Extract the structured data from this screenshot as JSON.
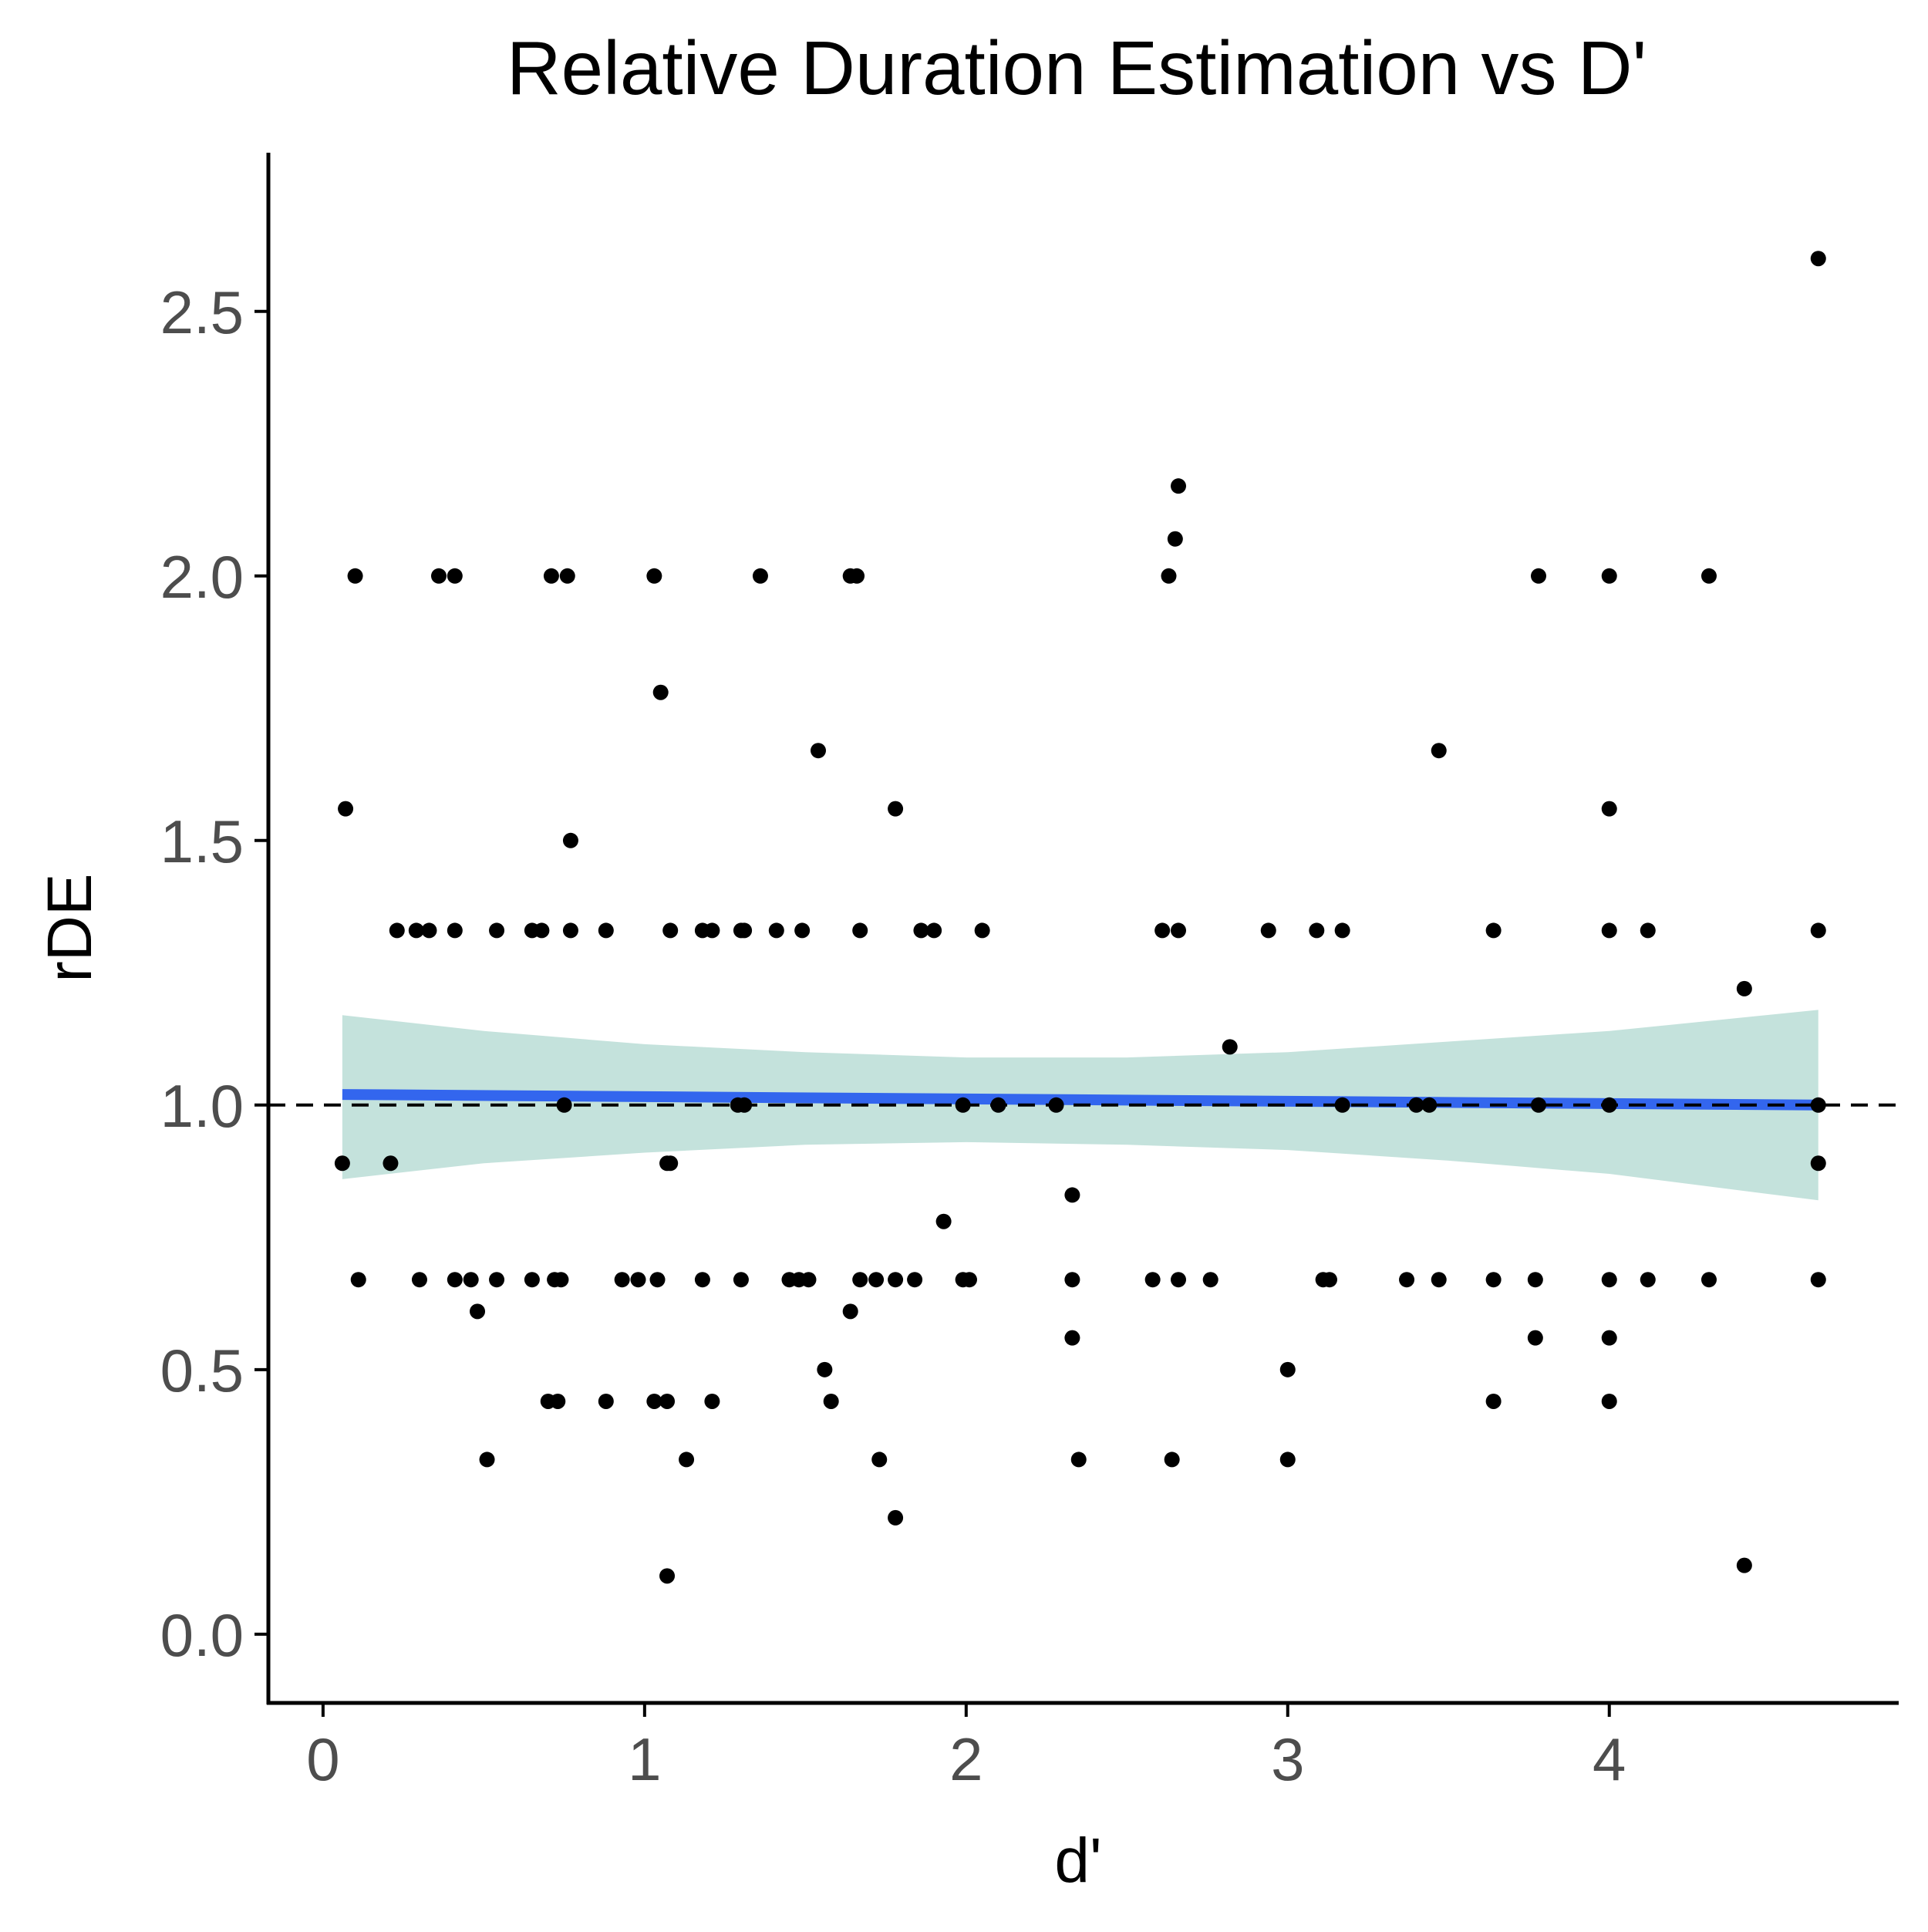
{
  "chart_data": {
    "type": "scatter",
    "title": "Relative Duration Estimation vs D'",
    "xlabel": "d'",
    "ylabel": "rDE",
    "xlim": [
      -0.17,
      4.9
    ],
    "ylim": [
      -0.13,
      2.8
    ],
    "xticks": [
      0,
      1,
      2,
      3,
      4
    ],
    "xtick_labels": [
      "0",
      "1",
      "2",
      "3",
      "4"
    ],
    "yticks": [
      0,
      0.5,
      1,
      1.5,
      2,
      2.5
    ],
    "ytick_labels": [
      "0.0",
      "0.5",
      "1.0",
      "1.5",
      "2.0",
      "2.5"
    ],
    "grid": false,
    "reference_line": {
      "y": 1.0,
      "style": "dashed",
      "color": "#000000"
    },
    "trend": {
      "method": "linear",
      "x": [
        0.06,
        4.65
      ],
      "y": [
        1.02,
        1.0
      ],
      "color": "#3366ee",
      "ci_color": "#b0d8d0",
      "ci_x": [
        0.06,
        0.5,
        1.0,
        1.5,
        2.0,
        2.5,
        3.0,
        3.5,
        4.0,
        4.65
      ],
      "ci_lower": [
        0.86,
        0.89,
        0.91,
        0.925,
        0.93,
        0.925,
        0.915,
        0.895,
        0.87,
        0.82
      ],
      "ci_upper": [
        1.17,
        1.14,
        1.115,
        1.1,
        1.09,
        1.09,
        1.1,
        1.12,
        1.14,
        1.18
      ]
    },
    "point_color": "#000000",
    "points": [
      {
        "x": 0.06,
        "y": 0.89
      },
      {
        "x": 0.07,
        "y": 1.56
      },
      {
        "x": 0.1,
        "y": 2.0
      },
      {
        "x": 0.11,
        "y": 0.67
      },
      {
        "x": 0.21,
        "y": 0.89
      },
      {
        "x": 0.23,
        "y": 1.33
      },
      {
        "x": 0.29,
        "y": 1.33
      },
      {
        "x": 0.3,
        "y": 0.67
      },
      {
        "x": 0.33,
        "y": 1.33
      },
      {
        "x": 0.36,
        "y": 2.0
      },
      {
        "x": 0.41,
        "y": 2.0
      },
      {
        "x": 0.41,
        "y": 1.33
      },
      {
        "x": 0.41,
        "y": 0.67
      },
      {
        "x": 0.46,
        "y": 0.67
      },
      {
        "x": 0.48,
        "y": 0.61
      },
      {
        "x": 0.51,
        "y": 0.33
      },
      {
        "x": 0.54,
        "y": 1.33
      },
      {
        "x": 0.54,
        "y": 0.67
      },
      {
        "x": 0.65,
        "y": 1.33
      },
      {
        "x": 0.65,
        "y": 0.67
      },
      {
        "x": 0.68,
        "y": 1.33
      },
      {
        "x": 0.7,
        "y": 0.44
      },
      {
        "x": 0.71,
        "y": 2.0
      },
      {
        "x": 0.72,
        "y": 0.67
      },
      {
        "x": 0.73,
        "y": 0.44
      },
      {
        "x": 0.74,
        "y": 0.67
      },
      {
        "x": 0.75,
        "y": 1.0
      },
      {
        "x": 0.76,
        "y": 2.0
      },
      {
        "x": 0.77,
        "y": 1.5
      },
      {
        "x": 0.77,
        "y": 1.33
      },
      {
        "x": 0.88,
        "y": 1.33
      },
      {
        "x": 0.88,
        "y": 0.44
      },
      {
        "x": 0.93,
        "y": 0.67
      },
      {
        "x": 0.98,
        "y": 0.67
      },
      {
        "x": 1.03,
        "y": 2.0
      },
      {
        "x": 1.03,
        "y": 0.44
      },
      {
        "x": 1.04,
        "y": 0.67
      },
      {
        "x": 1.05,
        "y": 1.78
      },
      {
        "x": 1.07,
        "y": 0.89
      },
      {
        "x": 1.07,
        "y": 0.44
      },
      {
        "x": 1.07,
        "y": 0.11
      },
      {
        "x": 1.08,
        "y": 1.33
      },
      {
        "x": 1.08,
        "y": 0.89
      },
      {
        "x": 1.13,
        "y": 0.33
      },
      {
        "x": 1.18,
        "y": 1.33
      },
      {
        "x": 1.18,
        "y": 0.67
      },
      {
        "x": 1.21,
        "y": 1.33
      },
      {
        "x": 1.21,
        "y": 0.44
      },
      {
        "x": 1.29,
        "y": 1.0
      },
      {
        "x": 1.3,
        "y": 1.33
      },
      {
        "x": 1.3,
        "y": 0.67
      },
      {
        "x": 1.31,
        "y": 1.0
      },
      {
        "x": 1.31,
        "y": 1.33
      },
      {
        "x": 1.36,
        "y": 2.0
      },
      {
        "x": 1.41,
        "y": 1.33
      },
      {
        "x": 1.45,
        "y": 0.67
      },
      {
        "x": 1.48,
        "y": 0.67
      },
      {
        "x": 1.49,
        "y": 1.33
      },
      {
        "x": 1.51,
        "y": 0.67
      },
      {
        "x": 1.54,
        "y": 1.67
      },
      {
        "x": 1.56,
        "y": 0.5
      },
      {
        "x": 1.58,
        "y": 0.44
      },
      {
        "x": 1.64,
        "y": 2.0
      },
      {
        "x": 1.64,
        "y": 0.61
      },
      {
        "x": 1.66,
        "y": 2.0
      },
      {
        "x": 1.67,
        "y": 1.33
      },
      {
        "x": 1.67,
        "y": 0.67
      },
      {
        "x": 1.72,
        "y": 0.67
      },
      {
        "x": 1.73,
        "y": 0.33
      },
      {
        "x": 1.78,
        "y": 1.56
      },
      {
        "x": 1.78,
        "y": 0.67
      },
      {
        "x": 1.78,
        "y": 0.22
      },
      {
        "x": 1.84,
        "y": 0.67
      },
      {
        "x": 1.86,
        "y": 1.33
      },
      {
        "x": 1.9,
        "y": 1.33
      },
      {
        "x": 1.93,
        "y": 0.78
      },
      {
        "x": 1.99,
        "y": 1.0
      },
      {
        "x": 1.99,
        "y": 0.67
      },
      {
        "x": 2.01,
        "y": 0.67
      },
      {
        "x": 2.05,
        "y": 1.33
      },
      {
        "x": 2.1,
        "y": 1.0
      },
      {
        "x": 2.28,
        "y": 1.0
      },
      {
        "x": 2.33,
        "y": 0.83
      },
      {
        "x": 2.33,
        "y": 0.67
      },
      {
        "x": 2.33,
        "y": 0.56
      },
      {
        "x": 2.35,
        "y": 0.33
      },
      {
        "x": 2.58,
        "y": 0.67
      },
      {
        "x": 2.61,
        "y": 1.33
      },
      {
        "x": 2.63,
        "y": 2.0
      },
      {
        "x": 2.64,
        "y": 0.33
      },
      {
        "x": 2.65,
        "y": 2.07
      },
      {
        "x": 2.66,
        "y": 2.17
      },
      {
        "x": 2.66,
        "y": 1.33
      },
      {
        "x": 2.66,
        "y": 0.67
      },
      {
        "x": 2.76,
        "y": 0.67
      },
      {
        "x": 2.82,
        "y": 1.11
      },
      {
        "x": 2.94,
        "y": 1.33
      },
      {
        "x": 3.0,
        "y": 0.5
      },
      {
        "x": 3.0,
        "y": 0.33
      },
      {
        "x": 3.09,
        "y": 1.33
      },
      {
        "x": 3.11,
        "y": 0.67
      },
      {
        "x": 3.13,
        "y": 0.67
      },
      {
        "x": 3.17,
        "y": 1.33
      },
      {
        "x": 3.17,
        "y": 1.0
      },
      {
        "x": 3.37,
        "y": 0.67
      },
      {
        "x": 3.4,
        "y": 1.0
      },
      {
        "x": 3.44,
        "y": 1.0
      },
      {
        "x": 3.47,
        "y": 1.67
      },
      {
        "x": 3.47,
        "y": 0.67
      },
      {
        "x": 3.64,
        "y": 1.33
      },
      {
        "x": 3.64,
        "y": 0.67
      },
      {
        "x": 3.64,
        "y": 0.44
      },
      {
        "x": 3.77,
        "y": 0.67
      },
      {
        "x": 3.77,
        "y": 0.56
      },
      {
        "x": 3.78,
        "y": 2.0
      },
      {
        "x": 3.78,
        "y": 1.0
      },
      {
        "x": 4.0,
        "y": 2.0
      },
      {
        "x": 4.0,
        "y": 1.56
      },
      {
        "x": 4.0,
        "y": 1.33
      },
      {
        "x": 4.0,
        "y": 1.0
      },
      {
        "x": 4.0,
        "y": 0.67
      },
      {
        "x": 4.0,
        "y": 0.56
      },
      {
        "x": 4.0,
        "y": 0.44
      },
      {
        "x": 4.12,
        "y": 1.33
      },
      {
        "x": 4.12,
        "y": 0.67
      },
      {
        "x": 4.31,
        "y": 2.0
      },
      {
        "x": 4.31,
        "y": 0.67
      },
      {
        "x": 4.42,
        "y": 1.22
      },
      {
        "x": 4.42,
        "y": 0.13
      },
      {
        "x": 4.65,
        "y": 2.6
      },
      {
        "x": 4.65,
        "y": 1.33
      },
      {
        "x": 4.65,
        "y": 1.0
      },
      {
        "x": 4.65,
        "y": 0.89
      },
      {
        "x": 4.65,
        "y": 0.67
      }
    ]
  }
}
